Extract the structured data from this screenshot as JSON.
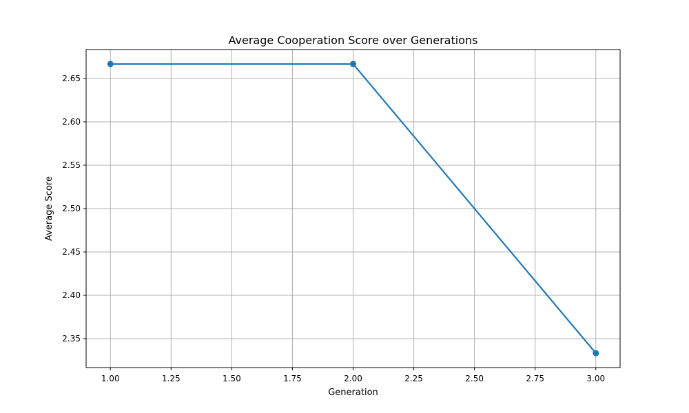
{
  "chart_data": {
    "type": "line",
    "title": "Average Cooperation Score over Generations",
    "xlabel": "Generation",
    "ylabel": "Average Score",
    "x": [
      1,
      2,
      3
    ],
    "series": [
      {
        "values": [
          2.6667,
          2.6667,
          2.3333
        ],
        "color": "#1f77b4",
        "marker": "circle"
      }
    ],
    "xlim": [
      0.9,
      3.1
    ],
    "ylim": [
      2.3167,
      2.6833
    ],
    "xticks": [
      "1.00",
      "1.25",
      "1.50",
      "1.75",
      "2.00",
      "2.25",
      "2.50",
      "2.75",
      "3.00"
    ],
    "yticks": [
      "2.35",
      "2.40",
      "2.45",
      "2.50",
      "2.55",
      "2.60",
      "2.65"
    ],
    "grid": true,
    "legend": "none"
  }
}
